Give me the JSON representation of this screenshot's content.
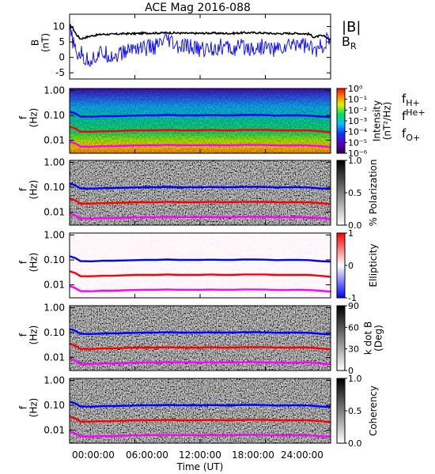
{
  "figure": {
    "title": "ACE Mag 2016-088",
    "x_axis": {
      "label": "Time (UT)",
      "ticks": [
        "00:00:00",
        "06:00:00",
        "12:00:00",
        "18:00:00",
        "24:00:00"
      ]
    }
  },
  "chart_data": [
    {
      "type": "line",
      "panel": "magnetic-field",
      "ylabel": "B\n(nT)",
      "yticks": [
        "10",
        "5",
        "0",
        "-5"
      ],
      "ylim": [
        -7,
        14
      ],
      "xlim_hours": [
        0,
        24
      ],
      "legend": [
        "|B|",
        "B_R"
      ],
      "series": [
        {
          "name": "|B|",
          "color": "#000000",
          "x": [
            0,
            0.3,
            0.6,
            1,
            2,
            3,
            4,
            5,
            6,
            7,
            8,
            9,
            10,
            11,
            12,
            13,
            14,
            15,
            16,
            17,
            18,
            19,
            20,
            21,
            22,
            22.5,
            23,
            23.5,
            24
          ],
          "values": [
            10.5,
            9.5,
            7.5,
            6,
            7,
            7.5,
            7.5,
            7.7,
            7.7,
            7.9,
            7.9,
            8.0,
            7.9,
            7.8,
            7.8,
            7.9,
            7.8,
            7.8,
            8.0,
            8.0,
            7.9,
            7.7,
            7.8,
            7.8,
            7.6,
            6.5,
            7.0,
            6.8,
            5.6
          ]
        },
        {
          "name": "B_R",
          "color": "#0000ff",
          "x": [
            0,
            0.3,
            0.6,
            1,
            1.5,
            2,
            3,
            4,
            5,
            6,
            7,
            8,
            9,
            10,
            11,
            12,
            13,
            14,
            15,
            16,
            17,
            18,
            19,
            20,
            21,
            22,
            22.5,
            23,
            23.5,
            24
          ],
          "values": [
            8.5,
            5.5,
            0.5,
            1.5,
            -1,
            -0.5,
            1.5,
            0.5,
            1.5,
            3.5,
            3,
            3.5,
            5.5,
            3,
            3.5,
            2.5,
            3,
            3.5,
            2.5,
            3.5,
            3,
            3.5,
            2.5,
            3.5,
            5,
            3.5,
            2,
            3,
            5,
            5.5
          ]
        }
      ]
    },
    {
      "type": "heatmap",
      "panel": "power-spectrum",
      "ylabel": "f\n(Hz)",
      "yscale": "log",
      "yticks": [
        "1.00",
        "0.10",
        "0.01"
      ],
      "ylim": [
        0.003,
        1.2
      ],
      "colorbar": {
        "label": "Intensity\n(nT²/Hz)",
        "ticks": [
          "10^0",
          "10^-1",
          "10^-2",
          "10^-3",
          "10^-4",
          "10^-5",
          "10^-6"
        ]
      },
      "legend": [
        "f_H+",
        "f_He+",
        "f_O+"
      ]
    },
    {
      "type": "heatmap",
      "panel": "polarization",
      "ylabel": "f\n(Hz)",
      "yscale": "log",
      "yticks": [
        "1.00",
        "0.10",
        "0.01"
      ],
      "ylim": [
        0.003,
        1.2
      ],
      "colorbar": {
        "label": "% Polarization",
        "ticks": [
          "1.0",
          "0.5",
          "0.0"
        ]
      }
    },
    {
      "type": "heatmap",
      "panel": "ellipticity",
      "ylabel": "f\n(Hz)",
      "yscale": "log",
      "yticks": [
        "1.00",
        "0.10",
        "0.01"
      ],
      "ylim": [
        0.003,
        1.2
      ],
      "colorbar": {
        "label": "Ellipticity",
        "ticks": [
          "1",
          "0",
          "-1"
        ]
      }
    },
    {
      "type": "heatmap",
      "panel": "k-dot-b",
      "ylabel": "f\n(Hz)",
      "yscale": "log",
      "yticks": [
        "1.00",
        "0.10",
        "0.01"
      ],
      "ylim": [
        0.003,
        1.2
      ],
      "colorbar": {
        "label": "k dot B\n(Deg)",
        "ticks": [
          "90",
          "60",
          "30",
          "0"
        ]
      }
    },
    {
      "type": "heatmap",
      "panel": "coherency",
      "ylabel": "f\n(Hz)",
      "yscale": "log",
      "yticks": [
        "1.00",
        "0.10",
        "0.01"
      ],
      "ylim": [
        0.003,
        1.2
      ],
      "colorbar": {
        "label": "Coherency",
        "ticks": [
          "1.0",
          "0.5",
          "0.0"
        ]
      }
    }
  ],
  "gyrofrequency_lines": {
    "x": [
      0,
      0.5,
      1,
      2,
      3,
      4,
      5,
      6,
      7,
      8,
      9,
      10,
      11,
      12,
      13,
      14,
      15,
      16,
      17,
      18,
      19,
      20,
      21,
      22,
      23,
      24
    ],
    "f_H+": [
      0.14,
      0.12,
      0.09,
      0.088,
      0.092,
      0.093,
      0.095,
      0.098,
      0.1,
      0.1,
      0.104,
      0.1,
      0.1,
      0.1,
      0.102,
      0.1,
      0.1,
      0.104,
      0.104,
      0.102,
      0.098,
      0.1,
      0.1,
      0.098,
      0.09,
      0.085
    ],
    "f_He+": [
      0.035,
      0.03,
      0.022,
      0.022,
      0.023,
      0.023,
      0.024,
      0.025,
      0.025,
      0.025,
      0.026,
      0.025,
      0.025,
      0.025,
      0.026,
      0.025,
      0.025,
      0.026,
      0.026,
      0.026,
      0.025,
      0.025,
      0.025,
      0.025,
      0.023,
      0.021
    ],
    "f_O+": [
      0.009,
      0.0075,
      0.0056,
      0.0055,
      0.0058,
      0.0058,
      0.006,
      0.0062,
      0.0063,
      0.0063,
      0.0065,
      0.0063,
      0.0063,
      0.0063,
      0.0064,
      0.0063,
      0.0063,
      0.0065,
      0.0065,
      0.0064,
      0.0062,
      0.0062,
      0.0063,
      0.0062,
      0.0058,
      0.0053
    ],
    "colors": {
      "f_H+": "#0000ff",
      "f_He+": "#ff0000",
      "f_O+": "#ff00ff"
    }
  },
  "colors": {
    "axis": "#000000",
    "B_total": "#000000",
    "B_R": "#0000ff",
    "H_line": "#0000ff",
    "He_line": "#ff0000",
    "O_line": "#ff00ff",
    "legend_H": "#0000aa",
    "legend_He": "#cc0000",
    "legend_O": "#ee00ee"
  }
}
